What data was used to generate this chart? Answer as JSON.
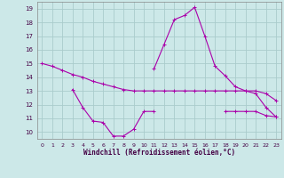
{
  "xlabel": "Windchill (Refroidissement éolien,°C)",
  "background_color": "#cce8e8",
  "grid_color": "#aacccc",
  "line_color": "#aa00aa",
  "x": [
    0,
    1,
    2,
    3,
    4,
    5,
    6,
    7,
    8,
    9,
    10,
    11,
    12,
    13,
    14,
    15,
    16,
    17,
    18,
    19,
    20,
    21,
    22,
    23
  ],
  "line1": [
    15.0,
    14.8,
    14.5,
    14.2,
    14.0,
    13.7,
    13.5,
    13.3,
    13.1,
    13.0,
    13.0,
    13.0,
    13.0,
    13.0,
    13.0,
    13.0,
    13.0,
    13.0,
    13.0,
    13.0,
    13.0,
    13.0,
    12.8,
    12.3
  ],
  "line2": [
    null,
    null,
    null,
    13.1,
    11.8,
    10.8,
    10.7,
    9.7,
    9.7,
    10.2,
    11.5,
    11.5,
    null,
    null,
    null,
    null,
    null,
    null,
    11.5,
    11.5,
    11.5,
    11.5,
    11.2,
    11.1
  ],
  "line3": [
    null,
    null,
    null,
    null,
    null,
    null,
    null,
    null,
    null,
    null,
    null,
    14.6,
    16.4,
    18.2,
    18.5,
    19.1,
    17.0,
    14.8,
    14.1,
    13.3,
    13.0,
    12.8,
    11.8,
    11.1
  ],
  "ylim": [
    9.5,
    19.5
  ],
  "xlim": [
    -0.5,
    23.5
  ],
  "yticks": [
    10,
    11,
    12,
    13,
    14,
    15,
    16,
    17,
    18,
    19
  ],
  "xticks": [
    0,
    1,
    2,
    3,
    4,
    5,
    6,
    7,
    8,
    9,
    10,
    11,
    12,
    13,
    14,
    15,
    16,
    17,
    18,
    19,
    20,
    21,
    22,
    23
  ]
}
